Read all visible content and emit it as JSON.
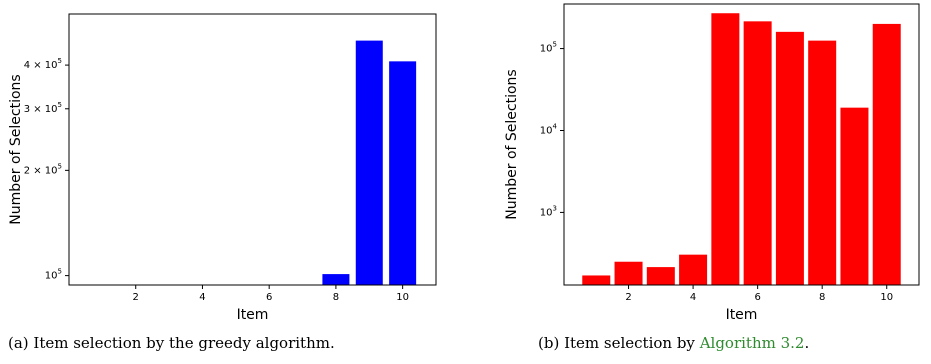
{
  "chart_data": [
    {
      "type": "bar",
      "title": "",
      "xlabel": "Item",
      "ylabel": "Number of Selections",
      "yscale": "log",
      "color": "#0000ff",
      "x": [
        8,
        9,
        10
      ],
      "values": [
        101000,
        470000,
        410000
      ],
      "xlim": [
        0,
        11
      ],
      "ylim": [
        94000,
        560000
      ],
      "xticks": [
        2,
        4,
        6,
        8,
        10
      ],
      "yticks": [
        {
          "value": 100000,
          "label": "10^5"
        },
        {
          "value": 200000,
          "label": "2 × 10^5"
        },
        {
          "value": 300000,
          "label": "3 × 10^5"
        },
        {
          "value": 400000,
          "label": "4 × 10^5"
        }
      ],
      "grid": false
    },
    {
      "type": "bar",
      "title": "",
      "xlabel": "Item",
      "ylabel": "Number of Selections",
      "yscale": "log",
      "color": "#ff0000",
      "x": [
        1,
        2,
        3,
        4,
        5,
        6,
        7,
        8,
        9,
        10
      ],
      "values": [
        170,
        250,
        215,
        305,
        270000,
        215000,
        160000,
        125000,
        19000,
        200000
      ],
      "xlim": [
        0,
        11
      ],
      "ylim": [
        130,
        350000
      ],
      "xticks": [
        2,
        4,
        6,
        8,
        10
      ],
      "yticks": [
        {
          "value": 1000,
          "label": "10^3"
        },
        {
          "value": 10000,
          "label": "10^4"
        },
        {
          "value": 100000,
          "label": "10^5"
        }
      ],
      "grid": false
    }
  ],
  "captions": {
    "a": "(a) Item selection by the greedy algorithm.",
    "b_prefix": "(b) Item selection by ",
    "b_link": "Algorithm 3.2",
    "b_suffix": "."
  }
}
